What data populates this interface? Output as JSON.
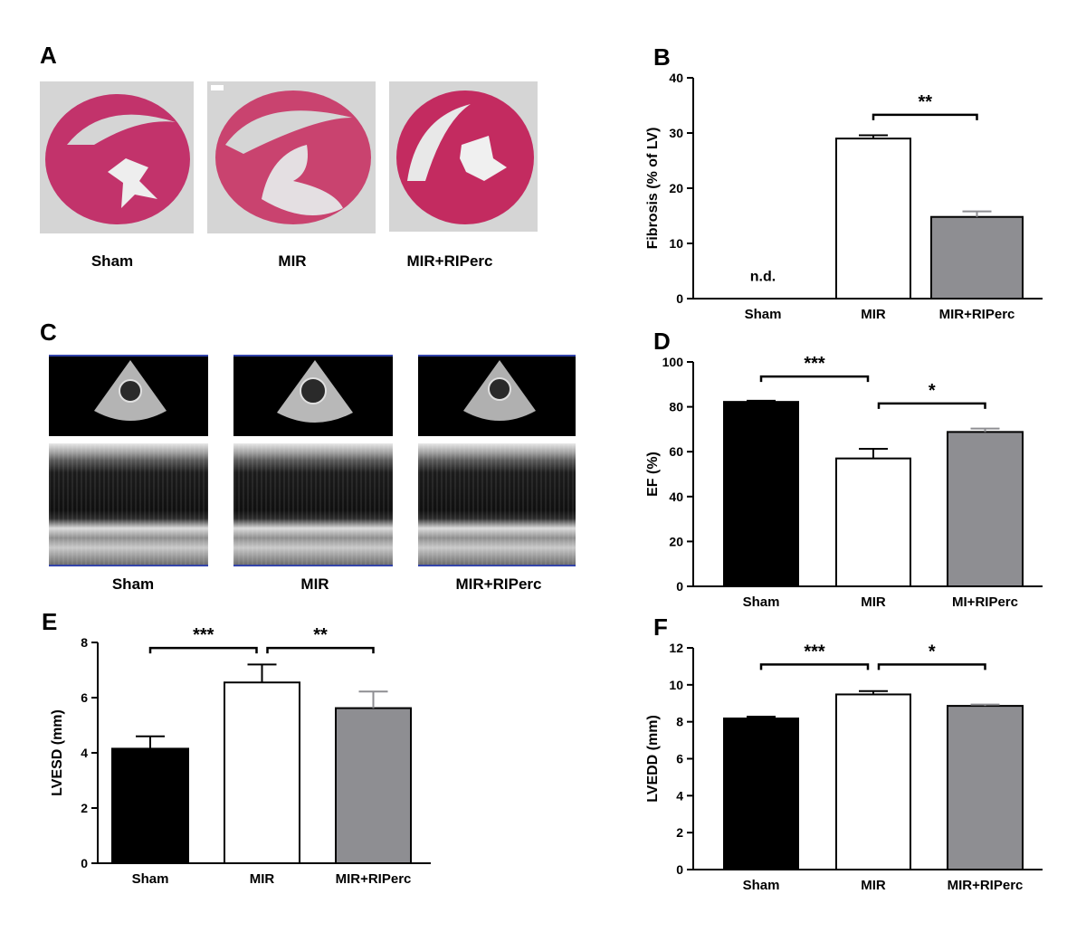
{
  "panels": {
    "A": {
      "letter": "A",
      "images": [
        {
          "label": "Sham",
          "content": "HE-stained heart cross-section"
        },
        {
          "label": "MIR",
          "content": "HE-stained heart cross-section"
        },
        {
          "label": "MIR+RIPerc",
          "content": "HE-stained heart cross-section"
        }
      ]
    },
    "C": {
      "letter": "C",
      "images": [
        {
          "label": "Sham",
          "content": "echocardiography with M-mode trace"
        },
        {
          "label": "MIR",
          "content": "echocardiography with M-mode trace"
        },
        {
          "label": "MIR+RIPerc",
          "content": "echocardiography with M-mode trace"
        }
      ]
    }
  },
  "chart_data": [
    {
      "panel": "B",
      "type": "bar",
      "title": "",
      "categories": [
        "Sham",
        "MIR",
        "MIR+RIPerc"
      ],
      "values": [
        0,
        29.0,
        14.8
      ],
      "errors": [
        0,
        0.6,
        1.0
      ],
      "colors": [
        "#000000",
        "#ffffff",
        "#8e8e92"
      ],
      "ylabel": "Fibrosis (% of LV)",
      "ylim": [
        0,
        40
      ],
      "yticks": [
        0,
        10,
        20,
        30,
        40
      ],
      "annotations": [
        {
          "text": "n.d.",
          "category": 0,
          "value": 3.2
        }
      ],
      "significance": [
        {
          "from": 1,
          "to": 2,
          "label": "**",
          "value": 33.3
        }
      ]
    },
    {
      "panel": "D",
      "type": "bar",
      "title": "",
      "categories": [
        "Sham",
        "MIR",
        "MI+RIPerc"
      ],
      "values": [
        82.2,
        57.0,
        68.8
      ],
      "errors": [
        0.5,
        4.3,
        1.5
      ],
      "colors": [
        "#000000",
        "#ffffff",
        "#8e8e92"
      ],
      "ylabel": "EF (%)",
      "ylim": [
        0,
        100
      ],
      "yticks": [
        0,
        20,
        40,
        60,
        80,
        100
      ],
      "annotations": [],
      "significance": [
        {
          "from": 0,
          "to": 1,
          "label": "***",
          "value": 93.5
        },
        {
          "from": 1,
          "to": 2,
          "label": "*",
          "value": 81.5
        }
      ]
    },
    {
      "panel": "E",
      "type": "bar",
      "title": "",
      "categories": [
        "Sham",
        "MIR",
        "MIR+RIPerc"
      ],
      "values": [
        4.15,
        6.55,
        5.62
      ],
      "errors": [
        0.45,
        0.65,
        0.6
      ],
      "colors": [
        "#000000",
        "#ffffff",
        "#8e8e92"
      ],
      "ylabel": "LVESD (mm)",
      "ylim": [
        0,
        8
      ],
      "yticks": [
        0,
        2,
        4,
        6,
        8
      ],
      "annotations": [],
      "significance": [
        {
          "from": 0,
          "to": 1,
          "label": "***",
          "value": 7.8
        },
        {
          "from": 1,
          "to": 2,
          "label": "**",
          "value": 7.8
        }
      ]
    },
    {
      "panel": "F",
      "type": "bar",
      "title": "",
      "categories": [
        "Sham",
        "MIR",
        "MIR+RIPerc"
      ],
      "values": [
        8.18,
        9.48,
        8.86
      ],
      "errors": [
        0.1,
        0.18,
        0.07
      ],
      "colors": [
        "#000000",
        "#ffffff",
        "#8e8e92"
      ],
      "ylabel": "LVEDD (mm)",
      "ylim": [
        0,
        12
      ],
      "yticks": [
        0,
        2,
        4,
        6,
        8,
        10,
        12
      ],
      "annotations": [],
      "significance": [
        {
          "from": 0,
          "to": 1,
          "label": "***",
          "value": 11.1
        },
        {
          "from": 1,
          "to": 2,
          "label": "*",
          "value": 11.1
        }
      ]
    }
  ]
}
